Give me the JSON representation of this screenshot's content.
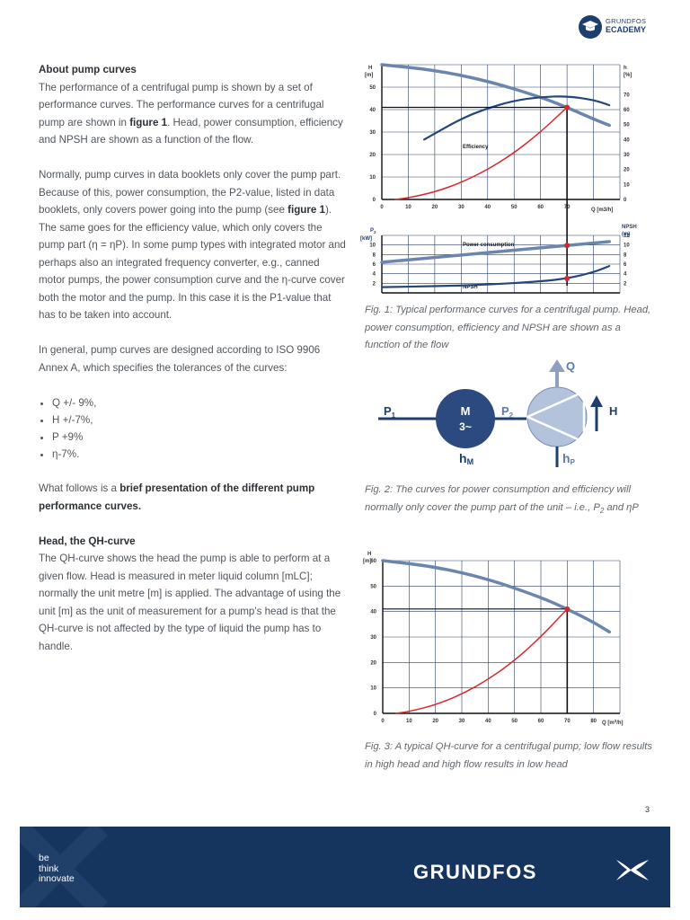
{
  "header": {
    "brand_top": "GRUNDFOS",
    "brand_bottom": "ECADEMY"
  },
  "text": {
    "about_heading": "About pump curves",
    "p1_a": "The performance of a centrifugal pump is shown by a set of performance curves. The performance curves for a centrifugal pump are shown in ",
    "p1_b": "figure 1",
    "p1_c": ". Head, power consumption, efficiency and NPSH are shown as a function of the flow.",
    "p2_a": "Normally, pump curves in data booklets only cover the pump part. Because of this, power consumption, the P2-value, listed in data booklets, only covers power going into the pump (see ",
    "p2_b": "figure 1",
    "p2_c": "). The same goes for the efficiency value, which only covers the pump part (η = ηP). In some pump types with integrated motor and perhaps also an integrated frequency converter, e.g., canned motor pumps, the power consumption curve and the η-curve cover both the motor and the pump. In this case it is the P1-value that has to be taken into account.",
    "p3": "In general, pump curves are designed according to ISO 9906 Annex A, which specifies the tolerances of the curves:",
    "bullets": [
      "Q +/- 9%,",
      "H +/-7%,",
      "P +9%",
      "η-7%."
    ],
    "p4_a": "What follows is a ",
    "p4_b": "brief presentation of the different pump performance curves.",
    "qh_heading": "Head, the QH-curve",
    "p5": "The QH-curve shows the head the pump is able to perform at a given flow. Head is measured in meter liquid column [mLC]; normally the unit metre [m] is applied. The advantage of using the unit [m] as the unit of measurement for a pump's head is that the QH-curve is not affected by the type of liquid the pump has to handle."
  },
  "fig1": {
    "top_ylabel_left": [
      "H",
      "[m]"
    ],
    "top_ylabel_right": [
      "h",
      "[%]"
    ],
    "x_label": "Q [m3/h]",
    "efficiency_label": "Efficiency",
    "bottom_ylabel_left": [
      "P",
      "[kW]"
    ],
    "bottom_ylabel_left_sub": "2",
    "bottom_ylabel_right": [
      "NPSH",
      "(m)"
    ],
    "power_label": "Power consumption",
    "npsh_label": "NPSH",
    "caption": "Fig. 1: Typical performance curves for a centrifugal pump. Head, power consumption, efficiency and NPSH are shown as a function of the flow"
  },
  "fig2": {
    "p1": "P",
    "p1_sub": "1",
    "motor_line1": "M",
    "motor_line2": "3~",
    "p2": "P",
    "p2_sub": "2",
    "q": "Q",
    "h": "H",
    "hm": "h",
    "hm_sub": "M",
    "hp": "h",
    "hp_sub": "P",
    "caption_a": "Fig. 2: The curves for power consumption and efficiency will normally only cover the pump part of the unit – i.e., P",
    "caption_sub": "2",
    "caption_b": " and ηP"
  },
  "fig3": {
    "ylabel": [
      "H",
      "[m]"
    ],
    "x_label": "Q [m",
    "x_label_sup": "3",
    "x_label_end": "/h]",
    "caption": "Fig. 3: A typical QH-curve for a centrifugal pump; low flow results in high head and high flow results in low head"
  },
  "chart_data": [
    {
      "type": "line",
      "title": "",
      "xlabel": "Q [m3/h]",
      "ylabel": "H [m]",
      "y2label": "h [%]",
      "xlim": [
        0,
        90
      ],
      "ylim": [
        0,
        60
      ],
      "y2lim": [
        0,
        90
      ],
      "x_ticks": [
        0,
        10,
        20,
        30,
        40,
        50,
        60,
        70
      ],
      "y_ticks": [
        0,
        10,
        20,
        30,
        40,
        50
      ],
      "y2_ticks": [
        0,
        10,
        20,
        30,
        40,
        50,
        60,
        70
      ],
      "grid": true,
      "series": [
        {
          "axis": "left",
          "color": "#6b86ad",
          "x": [
            0,
            20,
            40,
            60,
            70,
            80,
            86
          ],
          "y": [
            60,
            57.6,
            52.8,
            45.6,
            41,
            35.8,
            33
          ]
        },
        {
          "name": "Efficiency",
          "axis": "right",
          "color": "#23477a",
          "x": [
            16,
            30,
            40,
            50,
            60,
            70,
            80,
            86
          ],
          "y": [
            40,
            54,
            61,
            66,
            68.5,
            69,
            66.5,
            63
          ]
        },
        {
          "axis": "left",
          "color": "#d9262b",
          "x": [
            5,
            10,
            20,
            30,
            40,
            50,
            60,
            70
          ],
          "y": [
            0,
            0.7,
            3.3,
            7.5,
            13.3,
            20.7,
            30,
            41
          ]
        }
      ],
      "marked_point": {
        "x": 70,
        "y": 41
      }
    },
    {
      "type": "line",
      "title": "",
      "ylabel": "P2 [kW]",
      "y2label": "NPSH (m)",
      "xlim": [
        0,
        90
      ],
      "ylim": [
        0,
        12
      ],
      "y2lim": [
        0,
        12
      ],
      "y_ticks": [
        2,
        4,
        6,
        8,
        10
      ],
      "y2_ticks": [
        2,
        4,
        6,
        8,
        10,
        12
      ],
      "grid": true,
      "series": [
        {
          "name": "Power consumption",
          "axis": "left",
          "color": "#6b86ad",
          "x": [
            0,
            20,
            40,
            60,
            70,
            80,
            86
          ],
          "y": [
            6.4,
            7.4,
            8.4,
            9.4,
            9.9,
            10.4,
            10.7
          ]
        },
        {
          "name": "NPSH",
          "axis": "right",
          "color": "#23477a",
          "x": [
            0,
            20,
            40,
            60,
            70,
            80,
            86
          ],
          "y": [
            1.2,
            1.4,
            1.7,
            2.4,
            3.0,
            4.3,
            5.6
          ]
        }
      ],
      "marked_points": [
        {
          "x": 70,
          "y": 9.9
        },
        {
          "x": 70,
          "y": 3.0
        }
      ]
    },
    {
      "type": "line",
      "title": "",
      "xlabel": "Q [m3/h]",
      "ylabel": "H [m]",
      "xlim": [
        0,
        90
      ],
      "ylim": [
        0,
        60
      ],
      "x_ticks": [
        0,
        10,
        20,
        30,
        40,
        50,
        60,
        70,
        80
      ],
      "y_ticks": [
        0,
        10,
        20,
        30,
        40,
        50,
        60
      ],
      "grid": true,
      "series": [
        {
          "axis": "left",
          "color": "#6b86ad",
          "x": [
            0,
            20,
            40,
            60,
            70,
            80,
            86
          ],
          "y": [
            60,
            57.6,
            52.8,
            45.6,
            41,
            35.8,
            32
          ]
        },
        {
          "axis": "left",
          "color": "#d9262b",
          "x": [
            5,
            10,
            20,
            30,
            40,
            50,
            60,
            70
          ],
          "y": [
            0,
            0.7,
            3.3,
            7.5,
            13.3,
            20.7,
            30,
            41
          ]
        }
      ],
      "marked_point": {
        "x": 70,
        "y": 41
      }
    }
  ],
  "page_number": "3",
  "footer": {
    "tagline": [
      "be",
      "think",
      "innovate"
    ],
    "brand": "GRUNDFOS"
  },
  "colors": {
    "navy": "#16355e",
    "curve_light": "#6b86ad",
    "curve_dark": "#23477a",
    "red": "#d9262b",
    "grid": "#2a3f6a",
    "pump_fill": "#b3c3dc",
    "motor_fill": "#2c4a80"
  }
}
